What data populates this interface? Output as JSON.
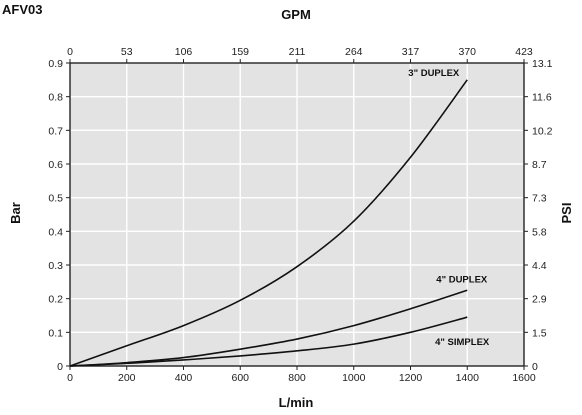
{
  "chart_data": {
    "type": "line",
    "title": "AFV03",
    "x_top_label": "GPM",
    "xlabel": "L/min",
    "ylabel_left": "Bar",
    "ylabel_right": "PSI",
    "xlim": [
      0,
      1600
    ],
    "ylim": [
      0,
      0.9
    ],
    "x_ticks": [
      "0",
      "200",
      "400",
      "600",
      "800",
      "1000",
      "1200",
      "1400",
      "1600"
    ],
    "x_top_ticks": [
      "0",
      "53",
      "106",
      "159",
      "211",
      "264",
      "317",
      "370",
      "423"
    ],
    "y_left_ticks": [
      "0",
      "0.1",
      "0.2",
      "0.3",
      "0.4",
      "0.5",
      "0.6",
      "0.7",
      "0.8",
      "0.9"
    ],
    "y_right_ticks": [
      "0",
      "1.5",
      "2.9",
      "4.4",
      "5.8",
      "7.3",
      "8.7",
      "10.2",
      "11.6",
      "13.1"
    ],
    "grid": true,
    "legend": "none",
    "series": [
      {
        "name": "3\" DUPLEX",
        "x": [
          0,
          200,
          400,
          600,
          800,
          1000,
          1200,
          1400
        ],
        "y": [
          0,
          0.06,
          0.12,
          0.195,
          0.295,
          0.43,
          0.62,
          0.85
        ]
      },
      {
        "name": "4\" DUPLEX",
        "x": [
          0,
          200,
          400,
          600,
          800,
          1000,
          1200,
          1400
        ],
        "y": [
          0,
          0.01,
          0.025,
          0.05,
          0.08,
          0.12,
          0.17,
          0.225
        ]
      },
      {
        "name": "4\" SIMPLEX",
        "x": [
          0,
          200,
          400,
          600,
          800,
          1000,
          1200,
          1400
        ],
        "y": [
          0,
          0.008,
          0.018,
          0.03,
          0.045,
          0.065,
          0.1,
          0.145
        ]
      }
    ]
  },
  "colors": {
    "plot_background": "#e3e3e3",
    "grid": "#ffffff",
    "line": "#111111"
  }
}
